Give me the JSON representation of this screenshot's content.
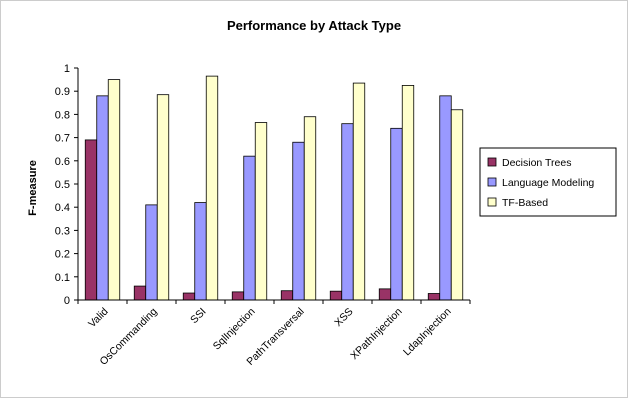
{
  "chart_data": {
    "type": "bar",
    "title": "Performance by Attack Type",
    "xlabel": "",
    "ylabel": "F-measure",
    "ylim": [
      0,
      1
    ],
    "yticks": [
      "0",
      "0.1",
      "0.2",
      "0.3",
      "0.4",
      "0.5",
      "0.6",
      "0.7",
      "0.8",
      "0.9",
      "1"
    ],
    "categories": [
      "Valid",
      "OsCommanding",
      "SSI",
      "SqlInjection",
      "PathTransversal",
      "XSS",
      "XPathInjection",
      "LdapInjection"
    ],
    "series": [
      {
        "name": "Decision Trees",
        "color": "#993366",
        "values": [
          0.69,
          0.06,
          0.03,
          0.035,
          0.04,
          0.038,
          0.048,
          0.028
        ]
      },
      {
        "name": "Language Modeling",
        "color": "#9999ff",
        "values": [
          0.88,
          0.41,
          0.42,
          0.62,
          0.68,
          0.76,
          0.74,
          0.88
        ]
      },
      {
        "name": "TF-Based",
        "color": "#ffffcc",
        "values": [
          0.95,
          0.885,
          0.965,
          0.765,
          0.79,
          0.935,
          0.925,
          0.82
        ]
      }
    ],
    "grid": false,
    "legend": "right"
  }
}
